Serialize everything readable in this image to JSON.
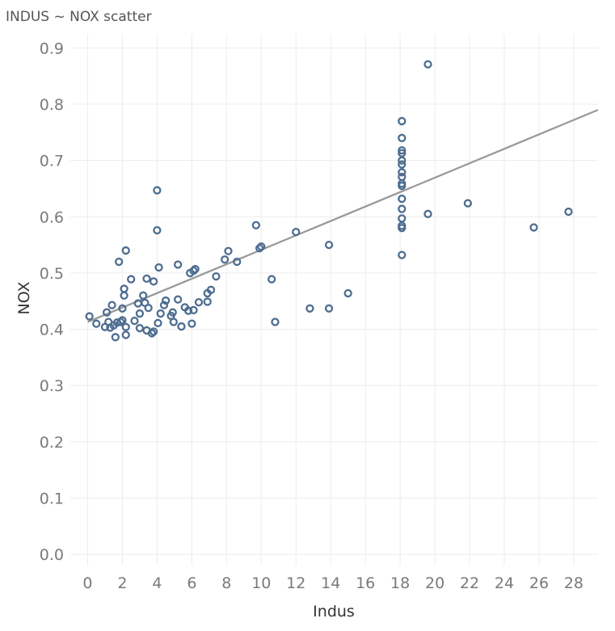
{
  "chart_data": {
    "type": "scatter",
    "title": "INDUS ~ NOX scatter",
    "xlabel": "Indus",
    "ylabel": "NOX",
    "xlim": [
      -1,
      29.4
    ],
    "ylim": [
      -0.02,
      0.925
    ],
    "xticks": [
      "0",
      "2",
      "4",
      "6",
      "8",
      "10",
      "12",
      "14",
      "16",
      "18",
      "20",
      "22",
      "24",
      "26",
      "28"
    ],
    "yticks": [
      "0.0",
      "0.1",
      "0.2",
      "0.3",
      "0.4",
      "0.5",
      "0.6",
      "0.7",
      "0.8",
      "0.9"
    ],
    "grid": true,
    "point_color": "#4e6d91",
    "trend_color": "#999999",
    "trendline": {
      "x": [
        0,
        29.4
      ],
      "y": [
        0.413,
        0.79
      ]
    },
    "points": [
      [
        0.1,
        0.423
      ],
      [
        0.5,
        0.41
      ],
      [
        1.0,
        0.404
      ],
      [
        1.1,
        0.43
      ],
      [
        1.2,
        0.413
      ],
      [
        1.3,
        0.403
      ],
      [
        1.4,
        0.443
      ],
      [
        1.5,
        0.407
      ],
      [
        1.6,
        0.386
      ],
      [
        1.7,
        0.412
      ],
      [
        1.8,
        0.52
      ],
      [
        1.9,
        0.413
      ],
      [
        2.0,
        0.416
      ],
      [
        2.0,
        0.437
      ],
      [
        2.1,
        0.472
      ],
      [
        2.1,
        0.46
      ],
      [
        2.2,
        0.54
      ],
      [
        2.2,
        0.39
      ],
      [
        2.2,
        0.404
      ],
      [
        2.5,
        0.489
      ],
      [
        2.7,
        0.415
      ],
      [
        2.9,
        0.446
      ],
      [
        3.0,
        0.402
      ],
      [
        3.0,
        0.428
      ],
      [
        3.2,
        0.46
      ],
      [
        3.3,
        0.447
      ],
      [
        3.4,
        0.398
      ],
      [
        3.4,
        0.49
      ],
      [
        3.5,
        0.438
      ],
      [
        3.7,
        0.393
      ],
      [
        3.8,
        0.485
      ],
      [
        3.8,
        0.396
      ],
      [
        4.0,
        0.647
      ],
      [
        4.0,
        0.576
      ],
      [
        4.05,
        0.411
      ],
      [
        4.1,
        0.51
      ],
      [
        4.2,
        0.428
      ],
      [
        4.4,
        0.443
      ],
      [
        4.5,
        0.451
      ],
      [
        4.8,
        0.424
      ],
      [
        4.9,
        0.43
      ],
      [
        4.95,
        0.413
      ],
      [
        5.2,
        0.453
      ],
      [
        5.2,
        0.515
      ],
      [
        5.4,
        0.405
      ],
      [
        5.6,
        0.439
      ],
      [
        5.8,
        0.433
      ],
      [
        5.9,
        0.5
      ],
      [
        6.0,
        0.41
      ],
      [
        6.1,
        0.504
      ],
      [
        6.1,
        0.434
      ],
      [
        6.2,
        0.507
      ],
      [
        6.4,
        0.448
      ],
      [
        6.9,
        0.449
      ],
      [
        6.9,
        0.464
      ],
      [
        7.1,
        0.47
      ],
      [
        7.4,
        0.494
      ],
      [
        7.9,
        0.524
      ],
      [
        8.1,
        0.539
      ],
      [
        8.6,
        0.52
      ],
      [
        9.7,
        0.585
      ],
      [
        9.9,
        0.544
      ],
      [
        10.0,
        0.547
      ],
      [
        10.6,
        0.489
      ],
      [
        10.8,
        0.413
      ],
      [
        12.0,
        0.573
      ],
      [
        12.8,
        0.437
      ],
      [
        13.9,
        0.55
      ],
      [
        13.9,
        0.437
      ],
      [
        15.0,
        0.464
      ],
      [
        18.1,
        0.77
      ],
      [
        18.1,
        0.74
      ],
      [
        18.1,
        0.718
      ],
      [
        18.1,
        0.713
      ],
      [
        18.1,
        0.7
      ],
      [
        18.1,
        0.693
      ],
      [
        18.1,
        0.679
      ],
      [
        18.1,
        0.671
      ],
      [
        18.1,
        0.659
      ],
      [
        18.1,
        0.655
      ],
      [
        18.1,
        0.632
      ],
      [
        18.1,
        0.614
      ],
      [
        18.1,
        0.597
      ],
      [
        18.1,
        0.584
      ],
      [
        18.1,
        0.58
      ],
      [
        18.1,
        0.532
      ],
      [
        19.6,
        0.871
      ],
      [
        19.6,
        0.605
      ],
      [
        21.9,
        0.624
      ],
      [
        25.7,
        0.581
      ],
      [
        27.7,
        0.609
      ]
    ]
  }
}
